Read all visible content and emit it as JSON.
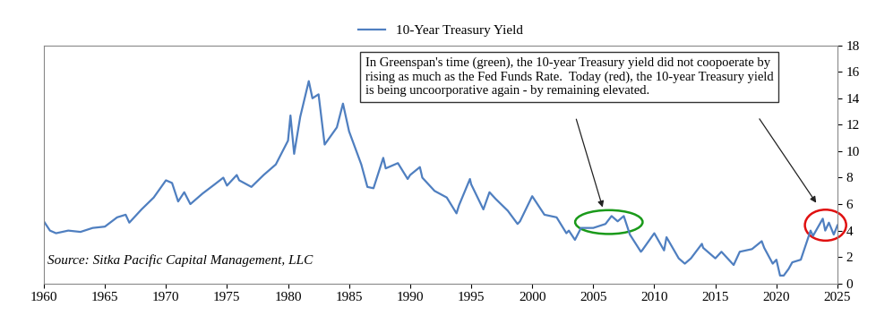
{
  "chart_data": {
    "type": "line",
    "source": "Source: Sitka Pacific Capital Management, LLC",
    "annotation": "In Greenspan's time (green), the 10-year Treasury yield did not coopoerate by rising as much as the Fed Funds Rate.  Today (red), the 10-year Treasury yield is being uncoorporative again - by remaining elevated.",
    "x": [
      1960,
      1960.5,
      1961,
      1962,
      1963,
      1964,
      1965,
      1966,
      1966.7,
      1967,
      1968,
      1969,
      1970,
      1970.5,
      1971,
      1971.5,
      1972,
      1973,
      1974,
      1974.7,
      1975,
      1975.8,
      1976,
      1977,
      1978,
      1979,
      1980,
      1980.2,
      1980.5,
      1981,
      1981.7,
      1982,
      1982.5,
      1983,
      1984,
      1984.5,
      1985,
      1986,
      1986.5,
      1987,
      1987.8,
      1988,
      1989,
      1989.8,
      1990,
      1990.8,
      1991,
      1992,
      1993,
      1993.8,
      1994,
      1994.9,
      1995,
      1996,
      1996.5,
      1997,
      1998,
      1998.8,
      1999,
      2000,
      2001,
      2002,
      2002.8,
      2003,
      2003.5,
      2004,
      2005,
      2006,
      2006.5,
      2007,
      2007.5,
      2008,
      2008.9,
      2009,
      2010,
      2010.8,
      2011,
      2012,
      2012.5,
      2013,
      2013.9,
      2014,
      2015,
      2015.5,
      2016,
      2016.5,
      2017,
      2018,
      2018.8,
      2019,
      2019.7,
      2020,
      2020.3,
      2020.6,
      2021,
      2021.3,
      2022,
      2022.8,
      2023,
      2023.8,
      2024,
      2024.3,
      2024.7,
      2025
    ],
    "series": [
      {
        "name": "10-Year Treasury Yield",
        "color": "#4f7fc0",
        "values": [
          4.7,
          4.0,
          3.8,
          4.0,
          3.9,
          4.2,
          4.3,
          5.0,
          5.2,
          4.6,
          5.6,
          6.5,
          7.8,
          7.6,
          6.2,
          6.9,
          6.0,
          6.8,
          7.5,
          8.0,
          7.4,
          8.2,
          7.8,
          7.3,
          8.2,
          9.0,
          10.8,
          12.7,
          9.8,
          12.6,
          15.3,
          14.0,
          14.3,
          10.5,
          11.8,
          13.6,
          11.5,
          9.0,
          7.3,
          7.2,
          9.5,
          8.7,
          9.1,
          7.9,
          8.2,
          8.8,
          8.0,
          7.0,
          6.5,
          5.3,
          5.9,
          7.9,
          7.5,
          5.6,
          6.9,
          6.4,
          5.5,
          4.5,
          4.7,
          6.6,
          5.2,
          5.0,
          3.8,
          4.0,
          3.3,
          4.2,
          4.2,
          4.5,
          5.1,
          4.7,
          5.1,
          3.7,
          2.4,
          2.5,
          3.8,
          2.5,
          3.5,
          1.9,
          1.5,
          1.9,
          3.0,
          2.7,
          1.9,
          2.4,
          1.9,
          1.4,
          2.4,
          2.6,
          3.2,
          2.7,
          1.5,
          1.8,
          0.6,
          0.6,
          1.1,
          1.6,
          1.8,
          4.0,
          3.6,
          4.9,
          4.0,
          4.6,
          3.7,
          4.4
        ]
      }
    ],
    "xlim": [
      1960,
      2025
    ],
    "xticks": [
      1960,
      1965,
      1970,
      1975,
      1980,
      1985,
      1990,
      1995,
      2000,
      2005,
      2010,
      2015,
      2020,
      2025
    ],
    "ylim": [
      0,
      18
    ],
    "yticks": [
      0,
      2,
      4,
      6,
      8,
      10,
      12,
      14,
      16,
      18
    ],
    "grid": false,
    "legend": "upper center"
  }
}
